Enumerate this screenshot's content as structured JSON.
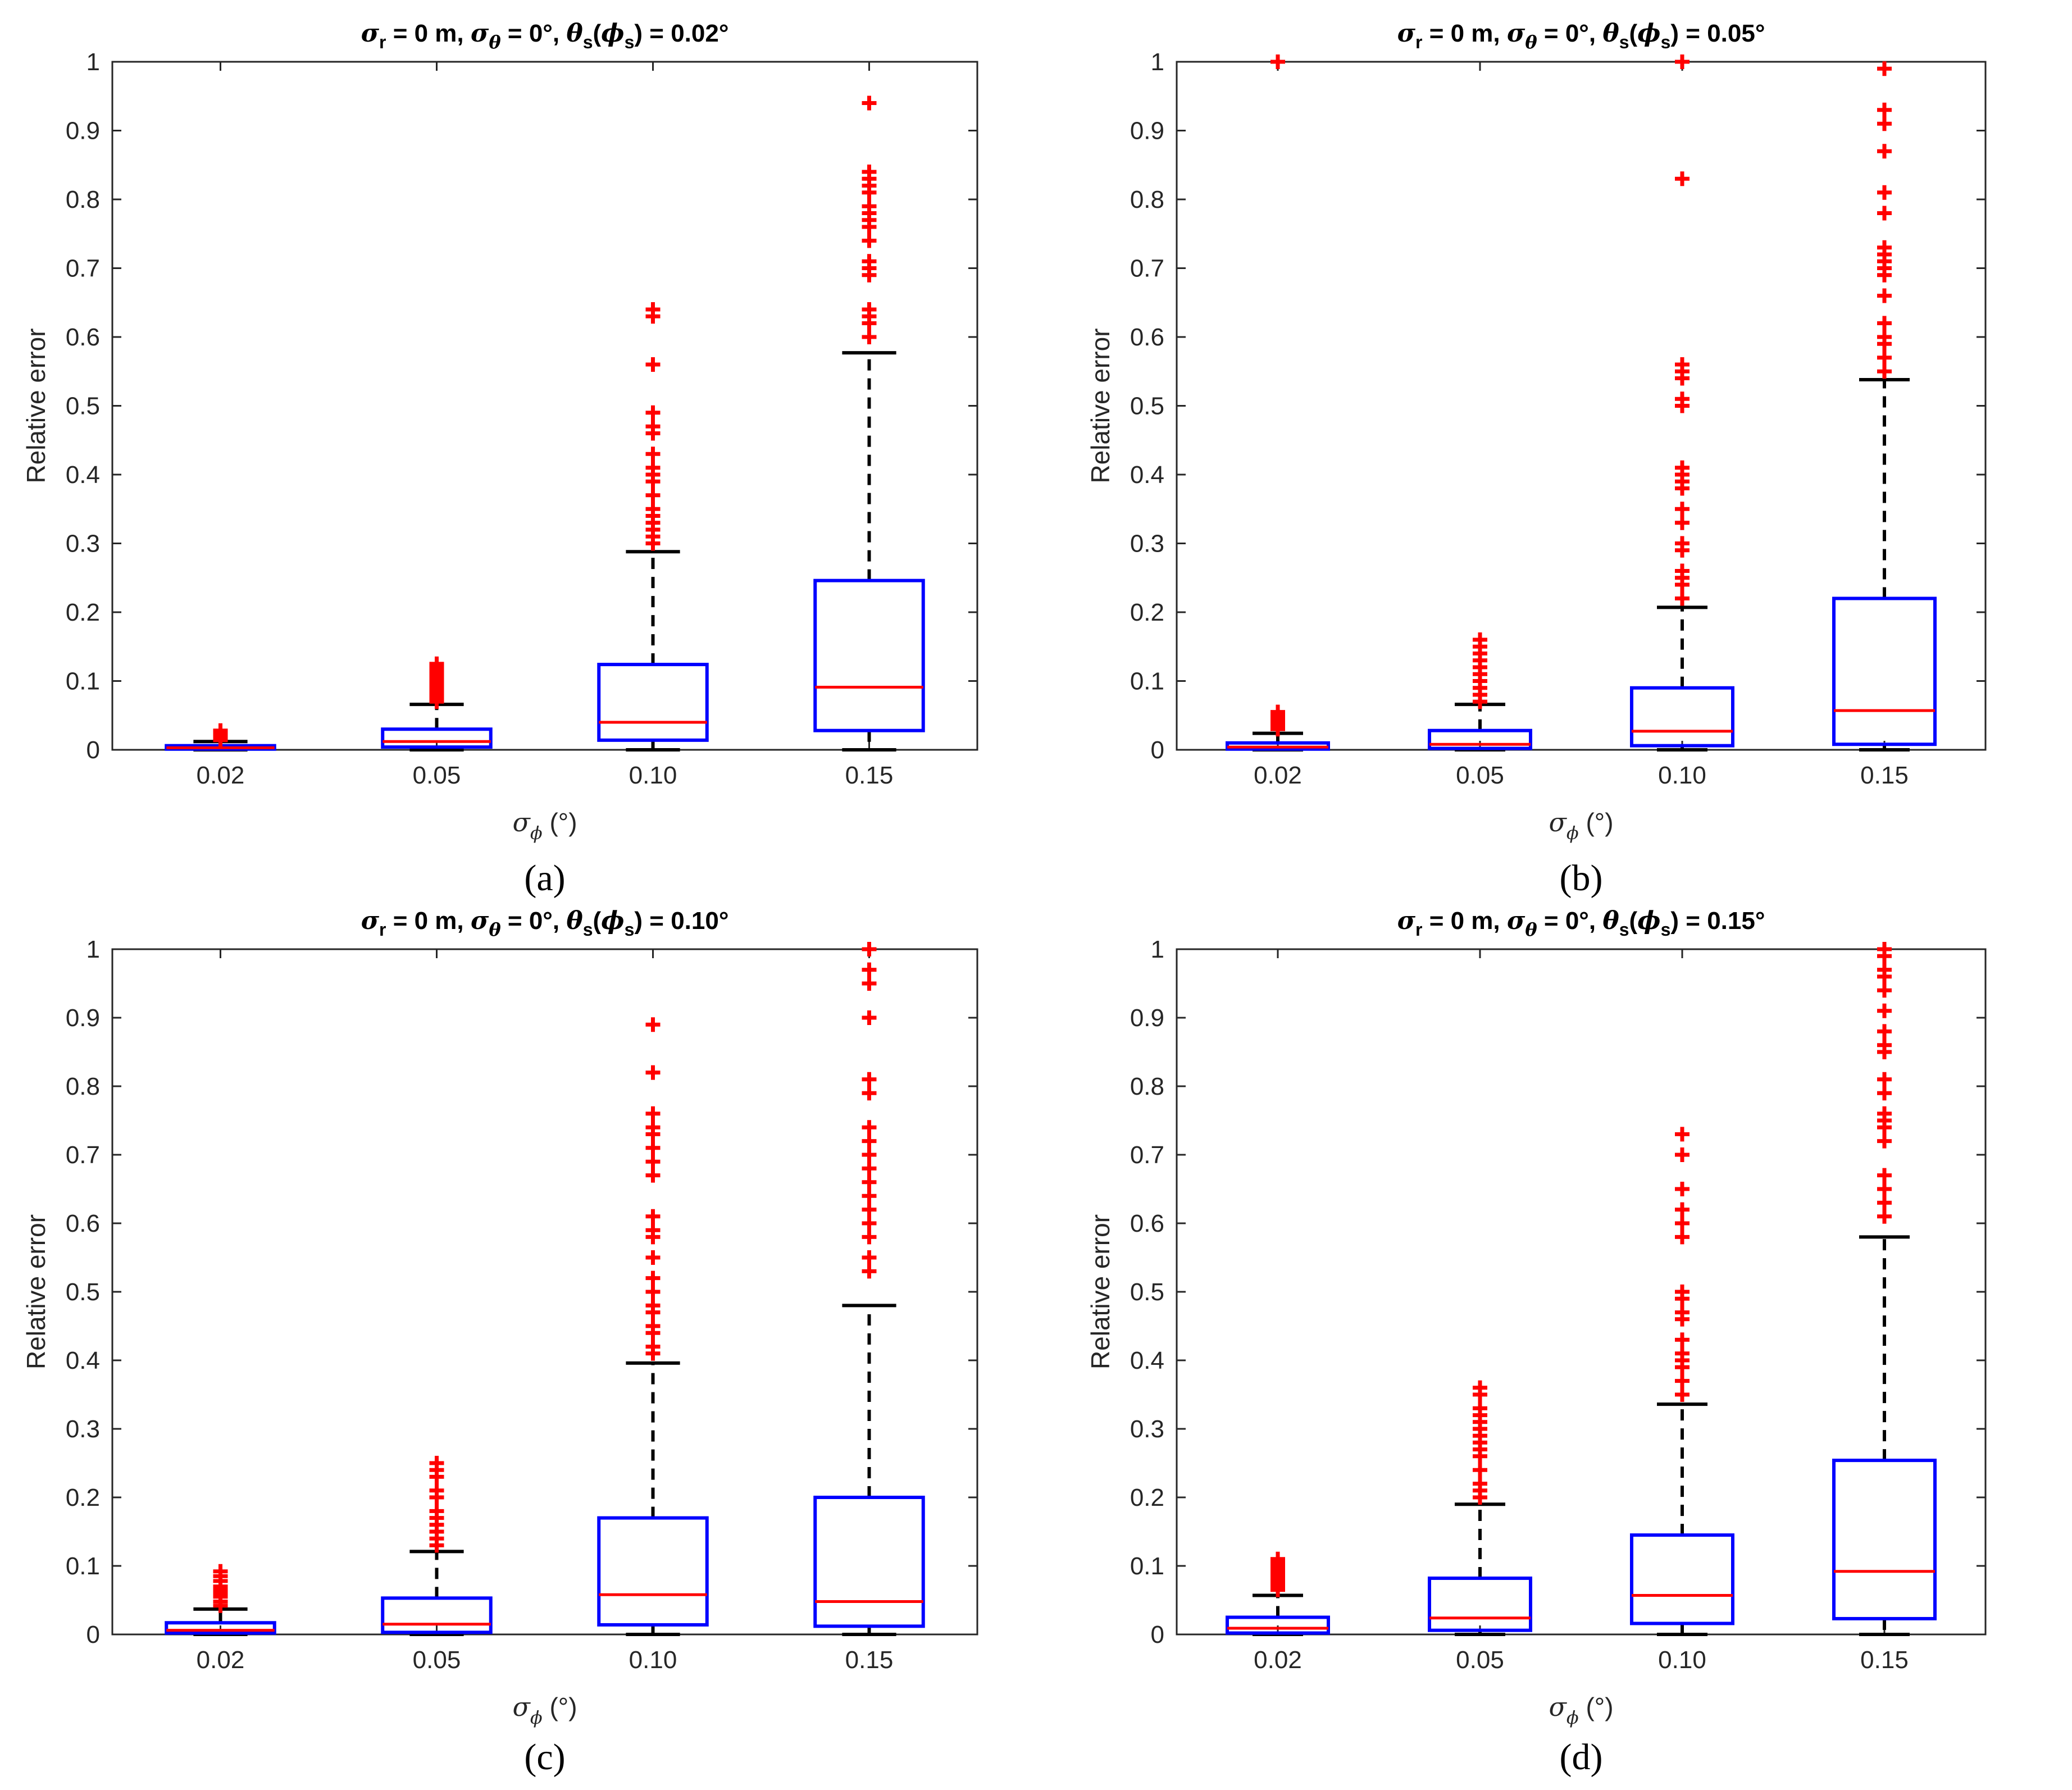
{
  "chart_data": [
    {
      "type": "boxplot",
      "panel": "(a)",
      "title": {
        "sigma_r": "σ",
        "r_sub": "r",
        "r_val": " = 0 m, ",
        "sigma_t": "σ",
        "t_sub": "θ",
        "t_val": " = 0°, ",
        "theta": "θ",
        "s_sub": "s",
        "paren_open": "(",
        "phi": "ϕ",
        "s_sub2": "s",
        "tail": ") = 0.02°"
      },
      "ylabel": "Relative error",
      "xlabel": {
        "sym": "σ",
        "sub": "ϕ",
        "unit": " (°)"
      },
      "ylim": [
        0,
        1
      ],
      "yticks": [
        "0",
        "0.1",
        "0.2",
        "0.3",
        "0.4",
        "0.5",
        "0.6",
        "0.7",
        "0.8",
        "0.9",
        "1"
      ],
      "categories": [
        "0.02",
        "0.05",
        "0.10",
        "0.15"
      ],
      "boxes": [
        {
          "low": 0.0,
          "q1": 0.001,
          "median": 0.003,
          "q3": 0.006,
          "high": 0.012,
          "outliers": [
            0.014,
            0.016,
            0.018,
            0.02,
            0.022,
            0.025,
            0.028
          ]
        },
        {
          "low": 0.0,
          "q1": 0.004,
          "median": 0.012,
          "q3": 0.03,
          "high": 0.066,
          "outliers": [
            0.07,
            0.075,
            0.08,
            0.085,
            0.09,
            0.095,
            0.1,
            0.105,
            0.11,
            0.115,
            0.12,
            0.125
          ]
        },
        {
          "low": 0.0,
          "q1": 0.014,
          "median": 0.04,
          "q3": 0.124,
          "high": 0.288,
          "outliers": [
            0.3,
            0.31,
            0.32,
            0.33,
            0.34,
            0.35,
            0.37,
            0.39,
            0.4,
            0.41,
            0.43,
            0.46,
            0.47,
            0.49,
            0.56,
            0.63,
            0.64
          ]
        },
        {
          "low": 0.0,
          "q1": 0.028,
          "median": 0.091,
          "q3": 0.246,
          "high": 0.577,
          "outliers": [
            0.6,
            0.62,
            0.63,
            0.64,
            0.69,
            0.7,
            0.71,
            0.74,
            0.76,
            0.77,
            0.78,
            0.79,
            0.81,
            0.82,
            0.83,
            0.84,
            0.94
          ]
        }
      ],
      "caption": "(a)"
    },
    {
      "type": "boxplot",
      "panel": "(b)",
      "title": {
        "sigma_r": "σ",
        "r_sub": "r",
        "r_val": " = 0 m, ",
        "sigma_t": "σ",
        "t_sub": "θ",
        "t_val": " = 0°, ",
        "theta": "θ",
        "s_sub": "s",
        "paren_open": "(",
        "phi": "ϕ",
        "s_sub2": "s",
        "tail": ") = 0.05°"
      },
      "ylabel": "Relative error",
      "xlabel": {
        "sym": "σ",
        "sub": "ϕ",
        "unit": " (°)"
      },
      "ylim": [
        0,
        1
      ],
      "yticks": [
        "0",
        "0.1",
        "0.2",
        "0.3",
        "0.4",
        "0.5",
        "0.6",
        "0.7",
        "0.8",
        "0.9",
        "1"
      ],
      "categories": [
        "0.02",
        "0.05",
        "0.10",
        "0.15"
      ],
      "boxes": [
        {
          "low": 0.0,
          "q1": 0.001,
          "median": 0.004,
          "q3": 0.01,
          "high": 0.024,
          "outliers": [
            0.03,
            0.035,
            0.04,
            0.045,
            0.05,
            0.055,
            1.0
          ]
        },
        {
          "low": 0.0,
          "q1": 0.002,
          "median": 0.008,
          "q3": 0.028,
          "high": 0.066,
          "outliers": [
            0.07,
            0.08,
            0.09,
            0.1,
            0.11,
            0.12,
            0.13,
            0.14,
            0.15,
            0.16
          ]
        },
        {
          "low": 0.0,
          "q1": 0.006,
          "median": 0.027,
          "q3": 0.09,
          "high": 0.207,
          "outliers": [
            0.22,
            0.24,
            0.25,
            0.26,
            0.29,
            0.3,
            0.33,
            0.35,
            0.38,
            0.39,
            0.4,
            0.41,
            0.5,
            0.51,
            0.54,
            0.55,
            0.56,
            0.83,
            1.0
          ]
        },
        {
          "low": 0.0,
          "q1": 0.008,
          "median": 0.057,
          "q3": 0.22,
          "high": 0.538,
          "outliers": [
            0.55,
            0.57,
            0.59,
            0.6,
            0.62,
            0.66,
            0.69,
            0.7,
            0.71,
            0.72,
            0.73,
            0.78,
            0.81,
            0.87,
            0.91,
            0.93,
            0.99
          ]
        }
      ],
      "caption": "(b)"
    },
    {
      "type": "boxplot",
      "panel": "(c)",
      "title": {
        "sigma_r": "σ",
        "r_sub": "r",
        "r_val": " = 0 m, ",
        "sigma_t": "σ",
        "t_sub": "θ",
        "t_val": " = 0°, ",
        "theta": "θ",
        "s_sub": "s",
        "paren_open": "(",
        "phi": "ϕ",
        "s_sub2": "s",
        "tail": ") = 0.10°"
      },
      "ylabel": "Relative error",
      "xlabel": {
        "sym": "σ",
        "sub": "ϕ",
        "unit": " (°)"
      },
      "ylim": [
        0,
        1
      ],
      "yticks": [
        "0",
        "0.1",
        "0.2",
        "0.3",
        "0.4",
        "0.5",
        "0.6",
        "0.7",
        "0.8",
        "0.9",
        "1"
      ],
      "categories": [
        "0.02",
        "0.05",
        "0.10",
        "0.15"
      ],
      "boxes": [
        {
          "low": 0.0,
          "q1": 0.002,
          "median": 0.006,
          "q3": 0.017,
          "high": 0.037,
          "outliers": [
            0.042,
            0.048,
            0.055,
            0.06,
            0.065,
            0.07,
            0.078,
            0.085,
            0.092
          ]
        },
        {
          "low": 0.0,
          "q1": 0.003,
          "median": 0.015,
          "q3": 0.053,
          "high": 0.121,
          "outliers": [
            0.13,
            0.14,
            0.15,
            0.16,
            0.17,
            0.18,
            0.2,
            0.21,
            0.23,
            0.24,
            0.25
          ]
        },
        {
          "low": 0.0,
          "q1": 0.014,
          "median": 0.058,
          "q3": 0.17,
          "high": 0.396,
          "outliers": [
            0.41,
            0.42,
            0.44,
            0.45,
            0.47,
            0.48,
            0.5,
            0.52,
            0.55,
            0.58,
            0.59,
            0.61,
            0.67,
            0.69,
            0.71,
            0.73,
            0.74,
            0.76,
            0.82,
            0.89
          ]
        },
        {
          "low": 0.0,
          "q1": 0.012,
          "median": 0.048,
          "q3": 0.2,
          "high": 0.48,
          "outliers": [
            0.53,
            0.55,
            0.58,
            0.6,
            0.62,
            0.64,
            0.66,
            0.68,
            0.7,
            0.72,
            0.74,
            0.79,
            0.81,
            0.9,
            0.95,
            0.97,
            1.0
          ]
        }
      ],
      "caption": "(c)"
    },
    {
      "type": "boxplot",
      "panel": "(d)",
      "title": {
        "sigma_r": "σ",
        "r_sub": "r",
        "r_val": " = 0 m, ",
        "sigma_t": "σ",
        "t_sub": "θ",
        "t_val": " = 0°, ",
        "theta": "θ",
        "s_sub": "s",
        "paren_open": "(",
        "phi": "ϕ",
        "s_sub2": "s",
        "tail": ") = 0.15°"
      },
      "ylabel": "Relative error",
      "xlabel": {
        "sym": "σ",
        "sub": "ϕ",
        "unit": " (°)"
      },
      "ylim": [
        0,
        1
      ],
      "yticks": [
        "0",
        "0.1",
        "0.2",
        "0.3",
        "0.4",
        "0.5",
        "0.6",
        "0.7",
        "0.8",
        "0.9",
        "1"
      ],
      "categories": [
        "0.02",
        "0.05",
        "0.10",
        "0.15"
      ],
      "boxes": [
        {
          "low": 0.0,
          "q1": 0.002,
          "median": 0.009,
          "q3": 0.025,
          "high": 0.057,
          "outliers": [
            0.065,
            0.07,
            0.075,
            0.08,
            0.085,
            0.09,
            0.095,
            0.1,
            0.105,
            0.11
          ]
        },
        {
          "low": 0.0,
          "q1": 0.006,
          "median": 0.024,
          "q3": 0.082,
          "high": 0.19,
          "outliers": [
            0.2,
            0.21,
            0.22,
            0.24,
            0.26,
            0.27,
            0.28,
            0.29,
            0.3,
            0.31,
            0.32,
            0.33,
            0.35,
            0.36
          ]
        },
        {
          "low": 0.0,
          "q1": 0.016,
          "median": 0.057,
          "q3": 0.145,
          "high": 0.336,
          "outliers": [
            0.35,
            0.37,
            0.39,
            0.4,
            0.41,
            0.43,
            0.46,
            0.47,
            0.49,
            0.5,
            0.58,
            0.6,
            0.62,
            0.65,
            0.7,
            0.73
          ]
        },
        {
          "low": 0.0,
          "q1": 0.023,
          "median": 0.092,
          "q3": 0.254,
          "high": 0.58,
          "outliers": [
            0.61,
            0.63,
            0.65,
            0.67,
            0.72,
            0.74,
            0.75,
            0.76,
            0.79,
            0.81,
            0.85,
            0.86,
            0.88,
            0.91,
            0.94,
            0.96,
            0.97,
            0.99,
            1.0
          ]
        }
      ],
      "caption": "(d)"
    }
  ]
}
